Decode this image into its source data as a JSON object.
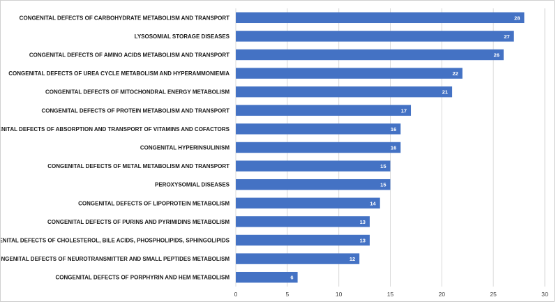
{
  "chart_data": {
    "type": "bar",
    "orientation": "horizontal",
    "title": "",
    "xlabel": "",
    "ylabel": "",
    "categories": [
      "CONGENITAL DEFECTS OF CARBOHYDRATE METABOLISM AND TRANSPORT",
      "LYSOSOMIAL STORAGE DISEASES",
      "CONGENITAL DEFECTS OF AMINO ACIDS METABOLISM AND TRANSPORT",
      "CONGENITAL DEFECTS OF UREA CYCLE METABOLISM AND HYPERAMMONIEMIA",
      "CONGENITAL DEFECTS OF MITOCHONDRAL ENERGY METABOLISM",
      "CONGENITAL DEFECTS OF PROTEIN METABOLISM AND TRANSPORT",
      "CONGENITAL DEFECTS OF ABSORPTION AND TRANSPORT OF VITAMINS AND COFACTORS",
      "CONGENITAL HYPERINSULINISM",
      "CONGENITAL DEFECTS OF METAL METABOLISM AND TRANSPORT",
      "PEROXYSOMIAL DISEASES",
      "CONGENITAL DEFECTS OF LIPOPROTEIN METABOLISM",
      "CONGENITAL DEFECTS OF PURINS AND PYRIMIDINS METABOLISM",
      "CONGENITAL DEFECTS OF CHOLESTEROL, BILE ACIDS, PHOSPHOLIPIDS, SPHINGOLIPIDS",
      "CONGENITAL DEFECTS OF NEUROTRANSMITTER AND SMALL PEPTIDES METABOLISM",
      "CONGENITAL DEFECTS OF PORPHYRIN AND HEM METABOLISM"
    ],
    "values": [
      28,
      27,
      26,
      22,
      21,
      17,
      16,
      16,
      15,
      15,
      14,
      13,
      13,
      12,
      6
    ],
    "xlim": [
      0,
      30
    ],
    "xticks": [
      0,
      5,
      10,
      15,
      20,
      25,
      30
    ],
    "grid": "vertical",
    "legend": "none",
    "data_labels": "inside-end",
    "colors": {
      "bar": "#4472c4",
      "grid": "#d9d9d9",
      "label": "#ffffff"
    }
  }
}
